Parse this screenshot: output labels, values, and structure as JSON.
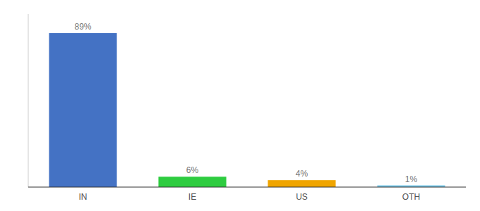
{
  "chart_data": {
    "type": "bar",
    "categories": [
      "IN",
      "IE",
      "US",
      "OTH"
    ],
    "values": [
      89,
      6,
      4,
      1
    ],
    "value_labels": [
      "89%",
      "6%",
      "4%",
      "1%"
    ],
    "colors": [
      "#4472c4",
      "#2ecc40",
      "#f0a500",
      "#74c6e8"
    ],
    "ylim": [
      0,
      100
    ],
    "data_labels": true,
    "tick_labels": "x",
    "grid": false
  }
}
